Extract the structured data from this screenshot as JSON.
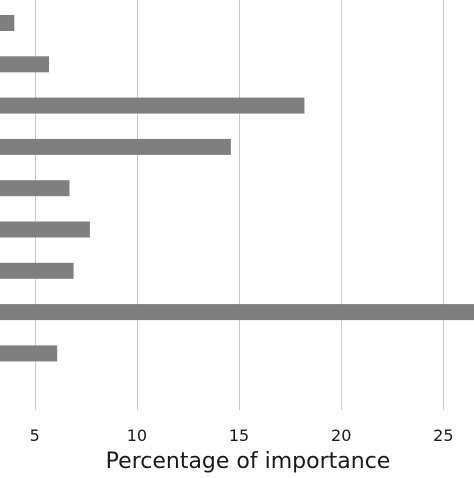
{
  "chart_data": {
    "type": "bar",
    "orientation": "horizontal",
    "title": "",
    "xlabel": "Percentage of importance",
    "ylabel": "",
    "xlim": [
      3.3,
      26.5
    ],
    "xticks": [
      5,
      10,
      15,
      20,
      25
    ],
    "grid": "vertical",
    "values": [
      4.0,
      5.7,
      18.2,
      14.6,
      6.7,
      7.7,
      6.9,
      26.5,
      6.1
    ],
    "colors": {
      "bar": "#7f7f7f",
      "grid": "#c8c8c8",
      "text": "#1a1a1a"
    }
  }
}
